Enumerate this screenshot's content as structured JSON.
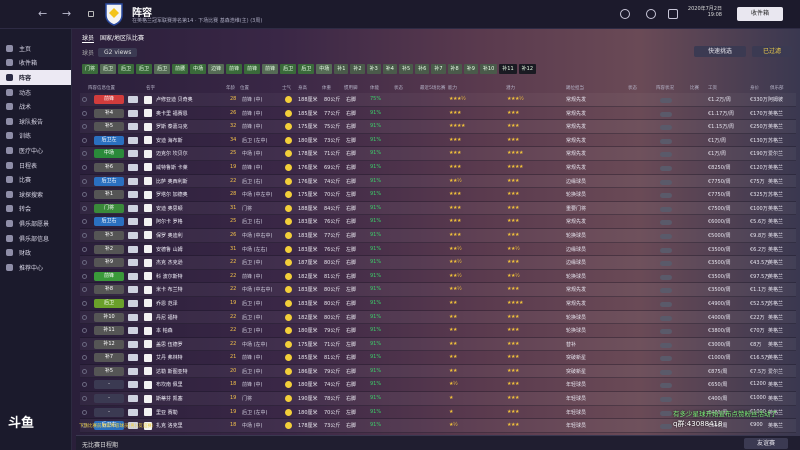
{
  "topbar": {
    "back": "←",
    "forward": "→",
    "title": "阵容",
    "subtitle": "在英格兰冠军联赛排名第14 · 下场比赛 基森浩维(主) (3周)",
    "date_line1": "2020年7月2日",
    "date_line2": "19:08",
    "inbox": "收件箱"
  },
  "sidebar": {
    "items": [
      {
        "label": "主页"
      },
      {
        "label": "收件箱"
      },
      {
        "label": "阵容",
        "active": true
      },
      {
        "label": "动态"
      },
      {
        "label": "战术"
      },
      {
        "label": "球队报告"
      },
      {
        "label": "训练"
      },
      {
        "label": "医疗中心"
      },
      {
        "label": "日程表"
      },
      {
        "label": "比赛"
      },
      {
        "label": "球探搜索"
      },
      {
        "label": "转会"
      },
      {
        "label": "俱乐部愿景"
      },
      {
        "label": "俱乐部信息"
      },
      {
        "label": "财政"
      },
      {
        "label": "推荐中心"
      }
    ],
    "logo": "斗鱼"
  },
  "main": {
    "tab1": "球员",
    "tab2": "国家/地区队比赛",
    "views_label": "球员",
    "views": "G2 views",
    "quick": "快速挑选",
    "filter": "已过滤",
    "pills": [
      "门将",
      "后卫",
      "后卫",
      "后卫",
      "后卫",
      "前腰",
      "中场",
      "边锋",
      "前锋",
      "前锋",
      "前锋",
      "后卫",
      "后卫",
      "中场"
    ],
    "numpills": [
      "补1",
      "补2",
      "补3",
      "补4",
      "补5",
      "补6",
      "补7",
      "补8",
      "补9",
      "补10",
      "补11",
      "补12"
    ]
  },
  "headers": [
    "阵容信息位置",
    "名字",
    "年龄",
    "位置",
    "士气",
    "身高",
    "体重",
    "惯用脚",
    "体能",
    "状态",
    "最近5场比赛",
    "能力",
    "潜力",
    "踢位担当",
    "状态",
    "阵容状况",
    "比赛",
    "工资",
    "身价",
    "俱乐部"
  ],
  "rows": [
    {
      "pos": "前锋",
      "color": "#d23c3c",
      "name": "卢修亚迪 贝奇奥",
      "age": "28",
      "p": "前锋 (中)",
      "ht": "188厘米",
      "wt": "80公斤",
      "ft": "右脚",
      "fit": "75%",
      "ab": "★★★½",
      "po": "★★★½",
      "role": "常规先发",
      "wage": "€1.2万/周",
      "val": "€330万",
      "club": "阿姆彼"
    },
    {
      "pos": "补4",
      "color": "#555",
      "name": "奥卡里 福赛恩",
      "age": "26",
      "p": "前锋 (中)",
      "ht": "185厘米",
      "wt": "77公斤",
      "ft": "右脚",
      "fit": "91%",
      "ab": "★★★",
      "po": "★★★",
      "role": "常规先发",
      "wage": "€1.17万/周",
      "val": "€170万",
      "club": "英格兰"
    },
    {
      "pos": "补5",
      "color": "#555",
      "name": "罗斯 泰嘉马克",
      "age": "32",
      "p": "前锋 (中)",
      "ht": "175厘米",
      "wt": "75公斤",
      "ft": "右脚",
      "fit": "91%",
      "ab": "★★★★",
      "po": "★★★",
      "role": "常规先发",
      "wage": "€1.15万/周",
      "val": "€250万",
      "club": "英格兰"
    },
    {
      "pos": "后卫左",
      "color": "#2a70c0",
      "name": "安迪 海布斯",
      "age": "34",
      "p": "后卫 (左中)",
      "ht": "180厘米",
      "wt": "73公斤",
      "ft": "左脚",
      "fit": "91%",
      "ab": "★★★",
      "po": "★★★",
      "role": "常规先发",
      "wage": "€1万/周",
      "val": "€130万",
      "club": "苏格兰"
    },
    {
      "pos": "中场",
      "color": "#2a8a3a",
      "name": "迈克尔 坎贝尔",
      "age": "25",
      "p": "中场 (中)",
      "ht": "178厘米",
      "wt": "71公斤",
      "ft": "右脚",
      "fit": "91%",
      "ab": "★★★",
      "po": "★★★★",
      "role": "常规先发",
      "wage": "€1万/周",
      "val": "€190万",
      "club": "爱尔兰"
    },
    {
      "pos": "补6",
      "color": "#555",
      "name": "威特鲁斯 卡莱",
      "age": "19",
      "p": "前锋 (中)",
      "ht": "176厘米",
      "wt": "69公斤",
      "ft": "右脚",
      "fit": "91%",
      "ab": "★★★",
      "po": "★★★★",
      "role": "常规先发",
      "wage": "€8250/周",
      "val": "€120万",
      "club": "英格兰"
    },
    {
      "pos": "后卫右",
      "color": "#2a70c0",
      "name": "比萨 奥西利斯",
      "age": "22",
      "p": "后卫 (右)",
      "ht": "176厘米",
      "wt": "74公斤",
      "ft": "右脚",
      "fit": "91%",
      "ab": "★★½",
      "po": "★★★",
      "role": "边缘球员",
      "wage": "€7750/周",
      "val": "€75万",
      "club": "英格兰"
    },
    {
      "pos": "补1",
      "color": "#555",
      "name": "罗塔尔 加德奥",
      "age": "28",
      "p": "中场 (中左中)",
      "ht": "175厘米",
      "wt": "70公斤",
      "ft": "左脚",
      "fit": "91%",
      "ab": "★★★",
      "po": "★★★",
      "role": "轮换球员",
      "wage": "€7750/周",
      "val": "€325万",
      "club": "苏格兰"
    },
    {
      "pos": "门将",
      "color": "#3a8a3a",
      "name": "安迪 奥思顿",
      "age": "31",
      "p": "门将",
      "ht": "188厘米",
      "wt": "84公斤",
      "ft": "右脚",
      "fit": "91%",
      "ab": "★★★",
      "po": "★★★",
      "role": "重要门将",
      "wage": "€7500/周",
      "val": "€100万",
      "club": "英格兰"
    },
    {
      "pos": "后卫右",
      "color": "#2a70c0",
      "name": "阿尔卡 罗格",
      "age": "25",
      "p": "后卫 (右)",
      "ht": "183厘米",
      "wt": "76公斤",
      "ft": "右脚",
      "fit": "91%",
      "ab": "★★★",
      "po": "★★★",
      "role": "常规先发",
      "wage": "€6000/周",
      "val": "€5.6万",
      "club": "英格兰"
    },
    {
      "pos": "补3",
      "color": "#555",
      "name": "保罗 奥迪利",
      "age": "26",
      "p": "中场 (中右中)",
      "ht": "183厘米",
      "wt": "77公斤",
      "ft": "右脚",
      "fit": "91%",
      "ab": "★★★",
      "po": "★★★",
      "role": "轮换球员",
      "wage": "€5000/周",
      "val": "€9.8万",
      "club": "英格兰"
    },
    {
      "pos": "补2",
      "color": "#555",
      "name": "安德鲁 山姆",
      "age": "31",
      "p": "中场 (左右)",
      "ht": "183厘米",
      "wt": "76公斤",
      "ft": "左脚",
      "fit": "91%",
      "ab": "★★½",
      "po": "★★½",
      "role": "边缘球员",
      "wage": "€3500/周",
      "val": "€6.2万",
      "club": "英格兰"
    },
    {
      "pos": "补9",
      "color": "#555",
      "name": "杰克 杰克逊",
      "age": "22",
      "p": "后卫 (中)",
      "ht": "187厘米",
      "wt": "80公斤",
      "ft": "右脚",
      "fit": "91%",
      "ab": "★★½",
      "po": "★★★",
      "role": "边缘球员",
      "wage": "€3500/周",
      "val": "€43.5万",
      "club": "英格兰"
    },
    {
      "pos": "前锋",
      "color": "#3a9a3a",
      "name": "科 波尔斯特",
      "age": "22",
      "p": "前锋 (中)",
      "ht": "182厘米",
      "wt": "81公斤",
      "ft": "右脚",
      "fit": "91%",
      "ab": "★★½",
      "po": "★★½",
      "role": "轮换球员",
      "wage": "€3500/周",
      "val": "€97.5万",
      "club": "英格兰"
    },
    {
      "pos": "补8",
      "color": "#555",
      "name": "米卡 布兰特",
      "age": "22",
      "p": "中场 (中右中)",
      "ht": "183厘米",
      "wt": "80公斤",
      "ft": "左脚",
      "fit": "91%",
      "ab": "★★½",
      "po": "★★★",
      "role": "常规先发",
      "wage": "€3500/周",
      "val": "€1.1万",
      "club": "英格兰"
    },
    {
      "pos": "后卫",
      "color": "#6aa02a",
      "name": "乔恩 范泽",
      "age": "19",
      "p": "后卫 (中)",
      "ht": "183厘米",
      "wt": "80公斤",
      "ft": "右脚",
      "fit": "91%",
      "ab": "★★",
      "po": "★★★★",
      "role": "常规先发",
      "wage": "€4900/周",
      "val": "€52.5万",
      "club": "苏格兰"
    },
    {
      "pos": "补10",
      "color": "#555",
      "name": "丹尼 福特",
      "age": "22",
      "p": "后卫 (中)",
      "ht": "182厘米",
      "wt": "80公斤",
      "ft": "右脚",
      "fit": "91%",
      "ab": "★★",
      "po": "★★★",
      "role": "轮换球员",
      "wage": "€4000/周",
      "val": "€22万",
      "club": "英格兰"
    },
    {
      "pos": "补11",
      "color": "#555",
      "name": "本 帕森",
      "age": "22",
      "p": "后卫 (中)",
      "ht": "180厘米",
      "wt": "79公斤",
      "ft": "右脚",
      "fit": "91%",
      "ab": "★★",
      "po": "★★★",
      "role": "轮换球员",
      "wage": "€3800/周",
      "val": "€70万",
      "club": "英格兰"
    },
    {
      "pos": "补12",
      "color": "#555",
      "name": "盖思 伍德罗",
      "age": "22",
      "p": "中场 (左中)",
      "ht": "175厘米",
      "wt": "71公斤",
      "ft": "左脚",
      "fit": "91%",
      "ab": "★★",
      "po": "★★★",
      "role": "替补",
      "wage": "€3000/周",
      "val": "€8万",
      "club": "英格兰"
    },
    {
      "pos": "补7",
      "color": "#555",
      "name": "艾丹 弗林特",
      "age": "21",
      "p": "前锋 (中)",
      "ht": "185厘米",
      "wt": "81公斤",
      "ft": "右脚",
      "fit": "91%",
      "ab": "★★",
      "po": "★★★",
      "role": "突破新星",
      "wage": "€1000/周",
      "val": "€16.5万",
      "club": "英格兰"
    },
    {
      "pos": "补5",
      "color": "#555",
      "name": "达勒 斯图亚特",
      "age": "20",
      "p": "后卫 (中)",
      "ht": "186厘米",
      "wt": "79公斤",
      "ft": "右脚",
      "fit": "91%",
      "ab": "★★",
      "po": "★★★",
      "role": "突破新星",
      "wage": "€875/周",
      "val": "€7.5万",
      "club": "爱尔兰"
    },
    {
      "pos": "-",
      "color": "#3b3a52",
      "name": "布坎南 佩里",
      "age": "18",
      "p": "前锋 (中)",
      "ht": "180厘米",
      "wt": "74公斤",
      "ft": "右脚",
      "fit": "91%",
      "ab": "★½",
      "po": "★★★",
      "role": "年轻球员",
      "wage": "€650/周",
      "val": "€1200",
      "club": "英格兰"
    },
    {
      "pos": "-",
      "color": "#3b3a52",
      "name": "斯蒂芬 凯塞",
      "age": "19",
      "p": "门将",
      "ht": "190厘米",
      "wt": "78公斤",
      "ft": "右脚",
      "fit": "91%",
      "ab": "★",
      "po": "★★★",
      "role": "年轻球员",
      "wage": "€400/周",
      "val": "€1000",
      "club": "英格兰"
    },
    {
      "pos": "-",
      "color": "#3b3a52",
      "name": "里亚 赛勒",
      "age": "19",
      "p": "后卫 (左中)",
      "ht": "180厘米",
      "wt": "70公斤",
      "ft": "左脚",
      "fit": "91%",
      "ab": "★",
      "po": "★★★",
      "role": "年轻球员",
      "wage": "€400/周",
      "val": "€1000",
      "club": "英格兰"
    },
    {
      "pos": "后卫右",
      "color": "#2a70c0",
      "name": "扎克 洛克里",
      "age": "18",
      "p": "中场 (中)",
      "ht": "178厘米",
      "wt": "73公斤",
      "ft": "右脚",
      "fit": "91%",
      "ab": "★½",
      "po": "★★★",
      "role": "年轻球员",
      "wage": "€350/周",
      "val": "€900",
      "club": "英格兰"
    }
  ],
  "footer": {
    "msg": "下场比赛前更新阵容球员(男)(友谊赛)",
    "text": "无比赛日程期",
    "friendly": "友谊赛"
  },
  "overlay": {
    "danmu": "有多少星球开始宣布点赞粉丝活动了",
    "qq": "q群:43088418"
  }
}
